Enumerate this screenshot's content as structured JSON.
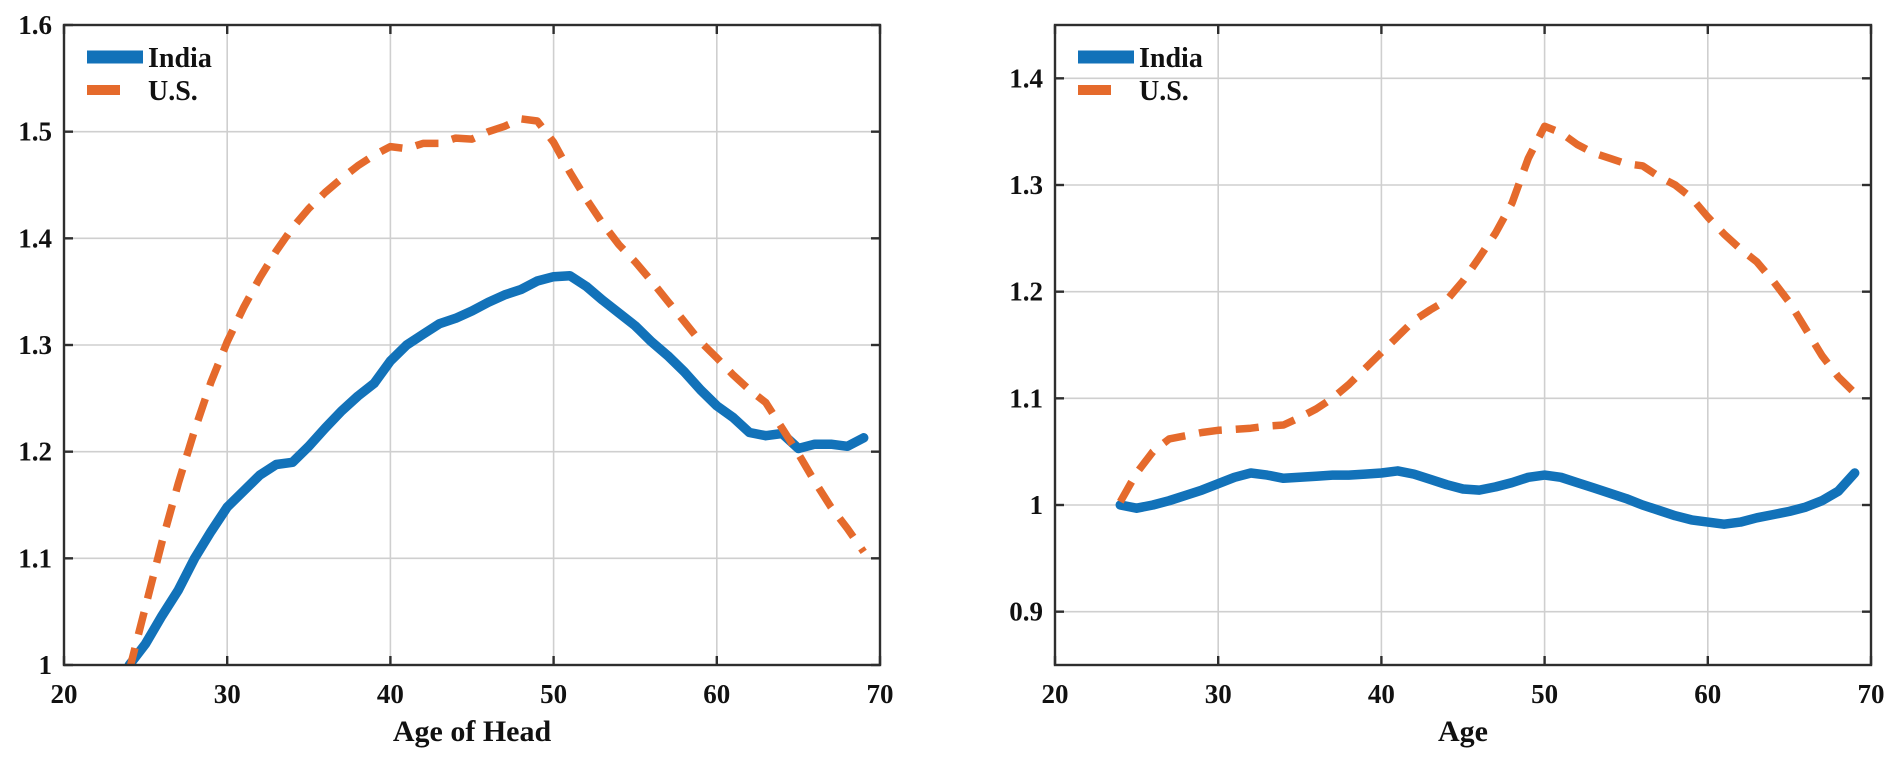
{
  "figure": {
    "background": "#ffffff",
    "description_left_xlabel": "Age of Head",
    "description_right_xlabel": "Age"
  },
  "style": {
    "india_color": "#1272b9",
    "us_color": "#e56a2c",
    "grid_color": "#cfcfcf",
    "axis_color": "#2e2e2e",
    "text_color": "#111111"
  },
  "legend": {
    "india_label": "India",
    "us_label": "U.S."
  },
  "chart_data": [
    {
      "type": "line",
      "panel": "left",
      "title": "",
      "xlabel": "Age of Head",
      "ylabel": "",
      "xlim": [
        20,
        70
      ],
      "ylim": [
        1.0,
        1.6
      ],
      "xticks": [
        20,
        30,
        40,
        50,
        60,
        70
      ],
      "xtick_labels": [
        "20",
        "30",
        "40",
        "50",
        "60",
        "70"
      ],
      "yticks": [
        1.0,
        1.1,
        1.2,
        1.3,
        1.4,
        1.5,
        1.6
      ],
      "ytick_labels": [
        "1",
        "1.1",
        "1.2",
        "1.3",
        "1.4",
        "1.5",
        "1.6"
      ],
      "grid": true,
      "legend_position": "top-left",
      "x": [
        24,
        25,
        26,
        27,
        28,
        29,
        30,
        31,
        32,
        33,
        34,
        35,
        36,
        37,
        38,
        39,
        40,
        41,
        42,
        43,
        44,
        45,
        46,
        47,
        48,
        49,
        50,
        51,
        52,
        53,
        54,
        55,
        56,
        57,
        58,
        59,
        60,
        61,
        62,
        63,
        64,
        65,
        66,
        67,
        68,
        69
      ],
      "series": [
        {
          "name": "India",
          "line_style": "solid",
          "values": [
            1.0,
            1.02,
            1.046,
            1.07,
            1.1,
            1.125,
            1.148,
            1.163,
            1.178,
            1.188,
            1.19,
            1.205,
            1.222,
            1.238,
            1.252,
            1.264,
            1.285,
            1.3,
            1.31,
            1.32,
            1.325,
            1.332,
            1.34,
            1.347,
            1.352,
            1.36,
            1.364,
            1.365,
            1.355,
            1.342,
            1.33,
            1.318,
            1.303,
            1.29,
            1.275,
            1.258,
            1.243,
            1.232,
            1.218,
            1.215,
            1.217,
            1.203,
            1.207,
            1.207,
            1.205,
            1.213
          ]
        },
        {
          "name": "U.S.",
          "line_style": "dashed",
          "values": [
            0.995,
            1.055,
            1.115,
            1.17,
            1.22,
            1.265,
            1.303,
            1.335,
            1.363,
            1.388,
            1.41,
            1.428,
            1.443,
            1.456,
            1.468,
            1.478,
            1.486,
            1.484,
            1.489,
            1.489,
            1.494,
            1.493,
            1.5,
            1.505,
            1.512,
            1.51,
            1.49,
            1.462,
            1.437,
            1.414,
            1.394,
            1.378,
            1.36,
            1.341,
            1.322,
            1.303,
            1.288,
            1.272,
            1.258,
            1.246,
            1.222,
            1.198,
            1.172,
            1.148,
            1.128,
            1.106
          ]
        }
      ]
    },
    {
      "type": "line",
      "panel": "right",
      "title": "",
      "xlabel": "Age",
      "ylabel": "",
      "xlim": [
        20,
        70
      ],
      "ylim": [
        0.85,
        1.45
      ],
      "xticks": [
        20,
        30,
        40,
        50,
        60,
        70
      ],
      "xtick_labels": [
        "20",
        "30",
        "40",
        "50",
        "60",
        "70"
      ],
      "yticks": [
        0.9,
        1.0,
        1.1,
        1.2,
        1.3,
        1.4
      ],
      "ytick_labels": [
        "0.9",
        "1",
        "1.1",
        "1.2",
        "1.3",
        "1.4"
      ],
      "grid": true,
      "legend_position": "top-left",
      "x": [
        24,
        25,
        26,
        27,
        28,
        29,
        30,
        31,
        32,
        33,
        34,
        35,
        36,
        37,
        38,
        39,
        40,
        41,
        42,
        43,
        44,
        45,
        46,
        47,
        48,
        49,
        50,
        51,
        52,
        53,
        54,
        55,
        56,
        57,
        58,
        59,
        60,
        61,
        62,
        63,
        64,
        65,
        66,
        67,
        68,
        69
      ],
      "series": [
        {
          "name": "India",
          "line_style": "solid",
          "values": [
            1.0,
            0.997,
            1.0,
            1.004,
            1.009,
            1.014,
            1.02,
            1.026,
            1.03,
            1.028,
            1.025,
            1.026,
            1.027,
            1.028,
            1.028,
            1.029,
            1.03,
            1.032,
            1.029,
            1.024,
            1.019,
            1.015,
            1.014,
            1.017,
            1.021,
            1.026,
            1.028,
            1.026,
            1.021,
            1.016,
            1.011,
            1.006,
            1.0,
            0.995,
            0.99,
            0.986,
            0.984,
            0.982,
            0.984,
            0.988,
            0.991,
            0.994,
            0.998,
            1.004,
            1.013,
            1.03
          ]
        },
        {
          "name": "U.S.",
          "line_style": "dashed",
          "values": [
            1.003,
            1.03,
            1.05,
            1.062,
            1.065,
            1.068,
            1.07,
            1.071,
            1.072,
            1.074,
            1.075,
            1.082,
            1.09,
            1.1,
            1.113,
            1.128,
            1.143,
            1.158,
            1.173,
            1.183,
            1.192,
            1.21,
            1.232,
            1.255,
            1.283,
            1.325,
            1.355,
            1.349,
            1.338,
            1.33,
            1.325,
            1.32,
            1.318,
            1.308,
            1.3,
            1.288,
            1.27,
            1.254,
            1.24,
            1.228,
            1.21,
            1.19,
            1.165,
            1.14,
            1.12,
            1.105
          ]
        }
      ]
    }
  ]
}
